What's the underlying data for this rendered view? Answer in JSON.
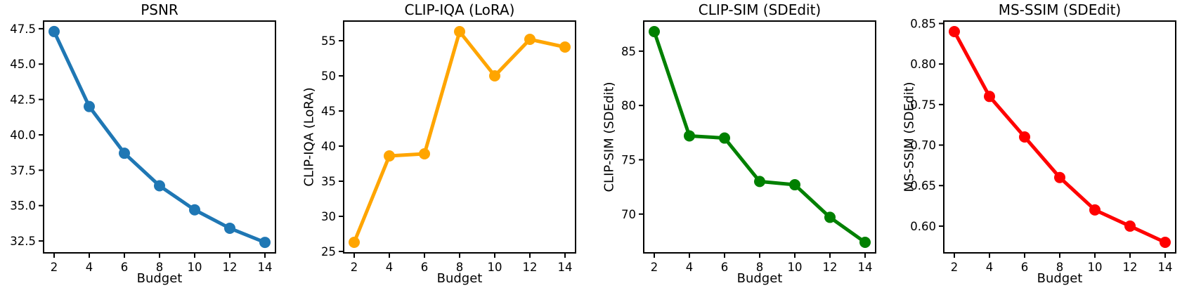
{
  "figure": {
    "background_color": "#ffffff",
    "text_color": "#000000",
    "axis_color": "#000000"
  },
  "chart_data": [
    {
      "type": "line",
      "title": "PSNR",
      "xlabel": "Budget",
      "ylabel": "",
      "x": [
        2,
        4,
        6,
        8,
        10,
        12,
        14
      ],
      "values": [
        47.3,
        42.0,
        38.7,
        36.4,
        34.7,
        33.4,
        32.4
      ],
      "color": "#1f77b4",
      "marker": "circle",
      "grid": false,
      "xlim": [
        1.4,
        14.6
      ],
      "ylim": [
        31.66,
        48.04
      ],
      "x_ticks": [
        2,
        4,
        6,
        8,
        10,
        12,
        14
      ],
      "y_ticks": [
        32.5,
        35.0,
        37.5,
        40.0,
        42.5,
        45.0,
        47.5
      ],
      "y_tick_decimals": 1
    },
    {
      "type": "line",
      "title": "CLIP-IQA (LoRA)",
      "xlabel": "Budget",
      "ylabel": "CLIP-IQA (LoRA)",
      "x": [
        2,
        4,
        6,
        8,
        10,
        12,
        14
      ],
      "values": [
        26.3,
        38.6,
        38.9,
        56.3,
        50.0,
        55.2,
        54.1
      ],
      "color": "#FFA500",
      "marker": "circle",
      "grid": false,
      "xlim": [
        1.4,
        14.6
      ],
      "ylim": [
        24.8,
        57.8
      ],
      "x_ticks": [
        2,
        4,
        6,
        8,
        10,
        12,
        14
      ],
      "y_ticks": [
        25,
        30,
        35,
        40,
        45,
        50,
        55
      ],
      "y_tick_decimals": 0
    },
    {
      "type": "line",
      "title": "CLIP-SIM (SDEdit)",
      "xlabel": "Budget",
      "ylabel": "CLIP-SIM (SDEdit)",
      "x": [
        2,
        4,
        6,
        8,
        10,
        12,
        14
      ],
      "values": [
        86.8,
        77.2,
        77.0,
        73.0,
        72.7,
        69.7,
        67.4
      ],
      "color": "#008000",
      "marker": "circle",
      "grid": false,
      "xlim": [
        1.4,
        14.6
      ],
      "ylim": [
        66.43,
        87.77
      ],
      "x_ticks": [
        2,
        4,
        6,
        8,
        10,
        12,
        14
      ],
      "y_ticks": [
        70,
        75,
        80,
        85
      ],
      "y_tick_decimals": 0
    },
    {
      "type": "line",
      "title": "MS-SSIM (SDEdit)",
      "xlabel": "Budget",
      "ylabel": "MS-SSIM (SDEdit)",
      "x": [
        2,
        4,
        6,
        8,
        10,
        12,
        14
      ],
      "values": [
        0.84,
        0.76,
        0.71,
        0.66,
        0.62,
        0.6,
        0.58
      ],
      "color": "#FF0000",
      "marker": "circle",
      "grid": false,
      "xlim": [
        1.4,
        14.6
      ],
      "ylim": [
        0.567,
        0.853
      ],
      "x_ticks": [
        2,
        4,
        6,
        8,
        10,
        12,
        14
      ],
      "y_ticks": [
        0.6,
        0.65,
        0.7,
        0.75,
        0.8,
        0.85
      ],
      "y_tick_decimals": 2
    }
  ]
}
